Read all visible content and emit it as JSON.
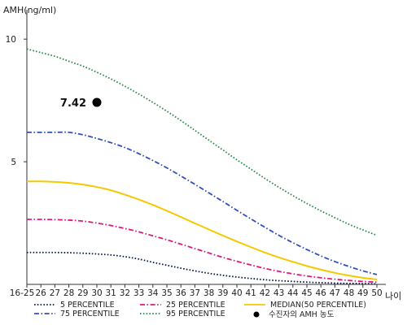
{
  "chart_data": {
    "type": "line",
    "ylabel": "AMH(ng/ml)",
    "xlabel": "나이",
    "ylim": [
      0,
      11
    ],
    "yticks": [
      5,
      10
    ],
    "x_categories": [
      "16-25",
      "26",
      "27",
      "28",
      "29",
      "30",
      "31",
      "32",
      "33",
      "34",
      "35",
      "36",
      "37",
      "38",
      "39",
      "40",
      "41",
      "42",
      "43",
      "44",
      "45",
      "46",
      "47",
      "48",
      "49",
      "50"
    ],
    "series": [
      {
        "name": "5 PERCENTILE",
        "color": "#0a1a4a",
        "style": "dotted",
        "values": [
          1.3,
          1.3,
          1.3,
          1.29,
          1.27,
          1.24,
          1.2,
          1.13,
          1.03,
          0.9,
          0.78,
          0.66,
          0.55,
          0.45,
          0.37,
          0.3,
          0.24,
          0.19,
          0.15,
          0.12,
          0.09,
          0.07,
          0.05,
          0.04,
          0.03,
          0.02
        ]
      },
      {
        "name": "25 PERCENTILE",
        "color": "#e0177f",
        "style": "dashdot",
        "values": [
          2.65,
          2.65,
          2.64,
          2.62,
          2.58,
          2.5,
          2.4,
          2.28,
          2.14,
          1.98,
          1.82,
          1.64,
          1.46,
          1.28,
          1.1,
          0.94,
          0.79,
          0.65,
          0.53,
          0.43,
          0.34,
          0.27,
          0.21,
          0.16,
          0.12,
          0.09
        ]
      },
      {
        "name": "MEDIAN(50 PERCENTILE)",
        "color": "#f5c800",
        "style": "solid",
        "values": [
          4.2,
          4.2,
          4.18,
          4.14,
          4.07,
          3.97,
          3.84,
          3.66,
          3.46,
          3.24,
          3.0,
          2.75,
          2.49,
          2.24,
          1.99,
          1.75,
          1.52,
          1.3,
          1.1,
          0.92,
          0.75,
          0.6,
          0.47,
          0.36,
          0.27,
          0.2
        ]
      },
      {
        "name": "75 PERCENTILE",
        "color": "#3050b8",
        "style": "dashdot",
        "values": [
          6.2,
          6.2,
          6.2,
          6.2,
          6.1,
          5.95,
          5.78,
          5.58,
          5.33,
          5.05,
          4.75,
          4.42,
          4.08,
          3.73,
          3.38,
          3.02,
          2.67,
          2.33,
          2.0,
          1.7,
          1.42,
          1.16,
          0.93,
          0.73,
          0.55,
          0.4
        ]
      },
      {
        "name": "95 PERCENTILE",
        "color": "#2b8a4a",
        "style": "dotted",
        "values": [
          9.6,
          9.45,
          9.3,
          9.1,
          8.9,
          8.65,
          8.38,
          8.08,
          7.76,
          7.42,
          7.06,
          6.68,
          6.28,
          5.88,
          5.48,
          5.08,
          4.7,
          4.32,
          3.96,
          3.62,
          3.3,
          3.0,
          2.72,
          2.45,
          2.22,
          2.0
        ]
      }
    ],
    "point": {
      "x": "30",
      "y": 7.42,
      "label": "7.42",
      "legend": "수진자의 AMH 농도",
      "color": "#000000"
    },
    "legend_position": "bottom"
  }
}
